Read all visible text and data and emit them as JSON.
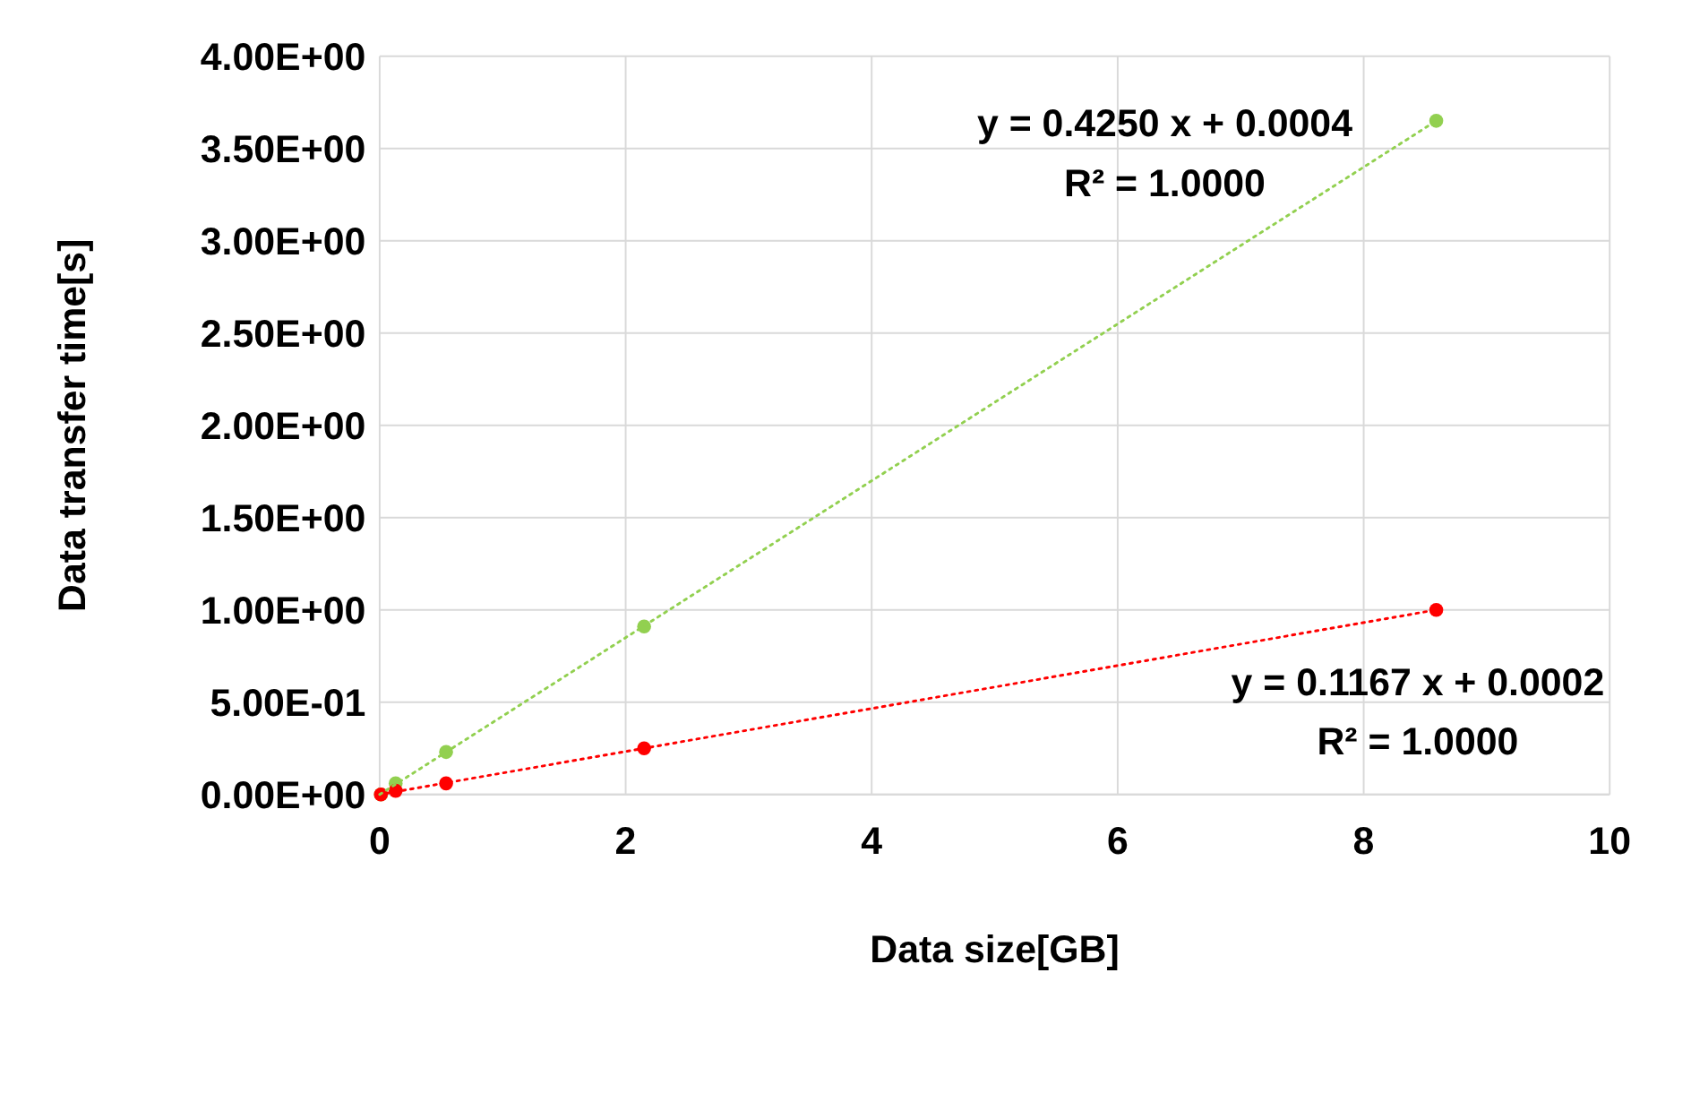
{
  "chart_data": {
    "type": "scatter",
    "xlabel": "Data size[GB]",
    "ylabel": "Data transfer time[s]",
    "xlim": [
      0,
      10
    ],
    "xticks": [
      0,
      2,
      4,
      6,
      8,
      10
    ],
    "ylim": [
      0,
      4
    ],
    "yticks": [
      {
        "value": 0,
        "label": "0.00E+00"
      },
      {
        "value": 0.5,
        "label": "5.00E-01"
      },
      {
        "value": 1,
        "label": "1.00E+00"
      },
      {
        "value": 1.5,
        "label": "1.50E+00"
      },
      {
        "value": 2,
        "label": "2.00E+00"
      },
      {
        "value": 2.5,
        "label": "2.50E+00"
      },
      {
        "value": 3,
        "label": "3.00E+00"
      },
      {
        "value": 3.5,
        "label": "3.50E+00"
      },
      {
        "value": 4,
        "label": "4.00E+00"
      }
    ],
    "grid": true,
    "series": [
      {
        "marker": "circle",
        "color": "#92d050",
        "x": [
          0.01,
          0.13,
          0.54,
          2.15,
          8.59
        ],
        "values": [
          0.0,
          0.06,
          0.23,
          0.91,
          3.65
        ]
      },
      {
        "marker": "circle",
        "color": "#ff0000",
        "x": [
          0.01,
          0.13,
          0.54,
          2.15,
          8.59
        ],
        "values": [
          0.0,
          0.02,
          0.06,
          0.25,
          1.0
        ]
      },
      {
        "type": "line",
        "line_style": "dotted",
        "marker": "none",
        "color": "#ff0000",
        "x": [
          0,
          8.59
        ],
        "values": [
          0.0,
          1.0
        ]
      },
      {
        "type": "line",
        "line_style": "dotted",
        "marker": "none",
        "color": "#92d050",
        "x": [
          0,
          8.59
        ],
        "values": [
          0.0,
          3.65
        ]
      }
    ],
    "annotations": [
      "y = 0.4250 x + 0.0004\nR² = 1.0000",
      "y = 0.1167 x + 0.0002\nR² = 1.0000"
    ]
  }
}
